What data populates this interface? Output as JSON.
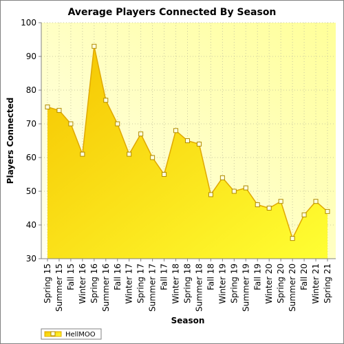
{
  "chart_data": {
    "type": "area",
    "title": "Average Players Connected By Season",
    "xlabel": "Season",
    "ylabel": "Players Connected",
    "ylim": [
      30,
      100
    ],
    "yticks": [
      30,
      40,
      50,
      60,
      70,
      80,
      90,
      100
    ],
    "grid": true,
    "legend_position": "bottom-left",
    "categories": [
      "Spring 15",
      "Summer 15",
      "Fall 15",
      "Winter 16",
      "Spring 16",
      "Summer 16",
      "Fall 16",
      "Winter 17",
      "Spring 17",
      "Summer 17",
      "Fall 17",
      "Winter 18",
      "Spring 18",
      "Summer 18",
      "Fall 18",
      "Winter 19",
      "Spring 19",
      "Summer 19",
      "Fall 19",
      "Winter 20",
      "Spring 20",
      "Summer 20",
      "Fall 20",
      "Winter 21",
      "Spring 21"
    ],
    "series": [
      {
        "name": "HellMOO",
        "values": [
          75,
          74,
          70,
          61,
          93,
          77,
          70,
          61,
          67,
          60,
          55,
          68,
          65,
          64,
          49,
          54,
          50,
          51,
          46,
          45,
          47,
          36,
          43,
          47,
          44
        ]
      }
    ],
    "colors": {
      "area_top": "#f5c400",
      "area_bottom": "#ffff33",
      "line": "#e0a800",
      "marker_fill": "#ffffe0",
      "marker_stroke": "#b08a00",
      "plot_bg_top": "#ffff99",
      "plot_bg_bottom": "#fffff0",
      "grid": "#c8c8a0"
    }
  }
}
